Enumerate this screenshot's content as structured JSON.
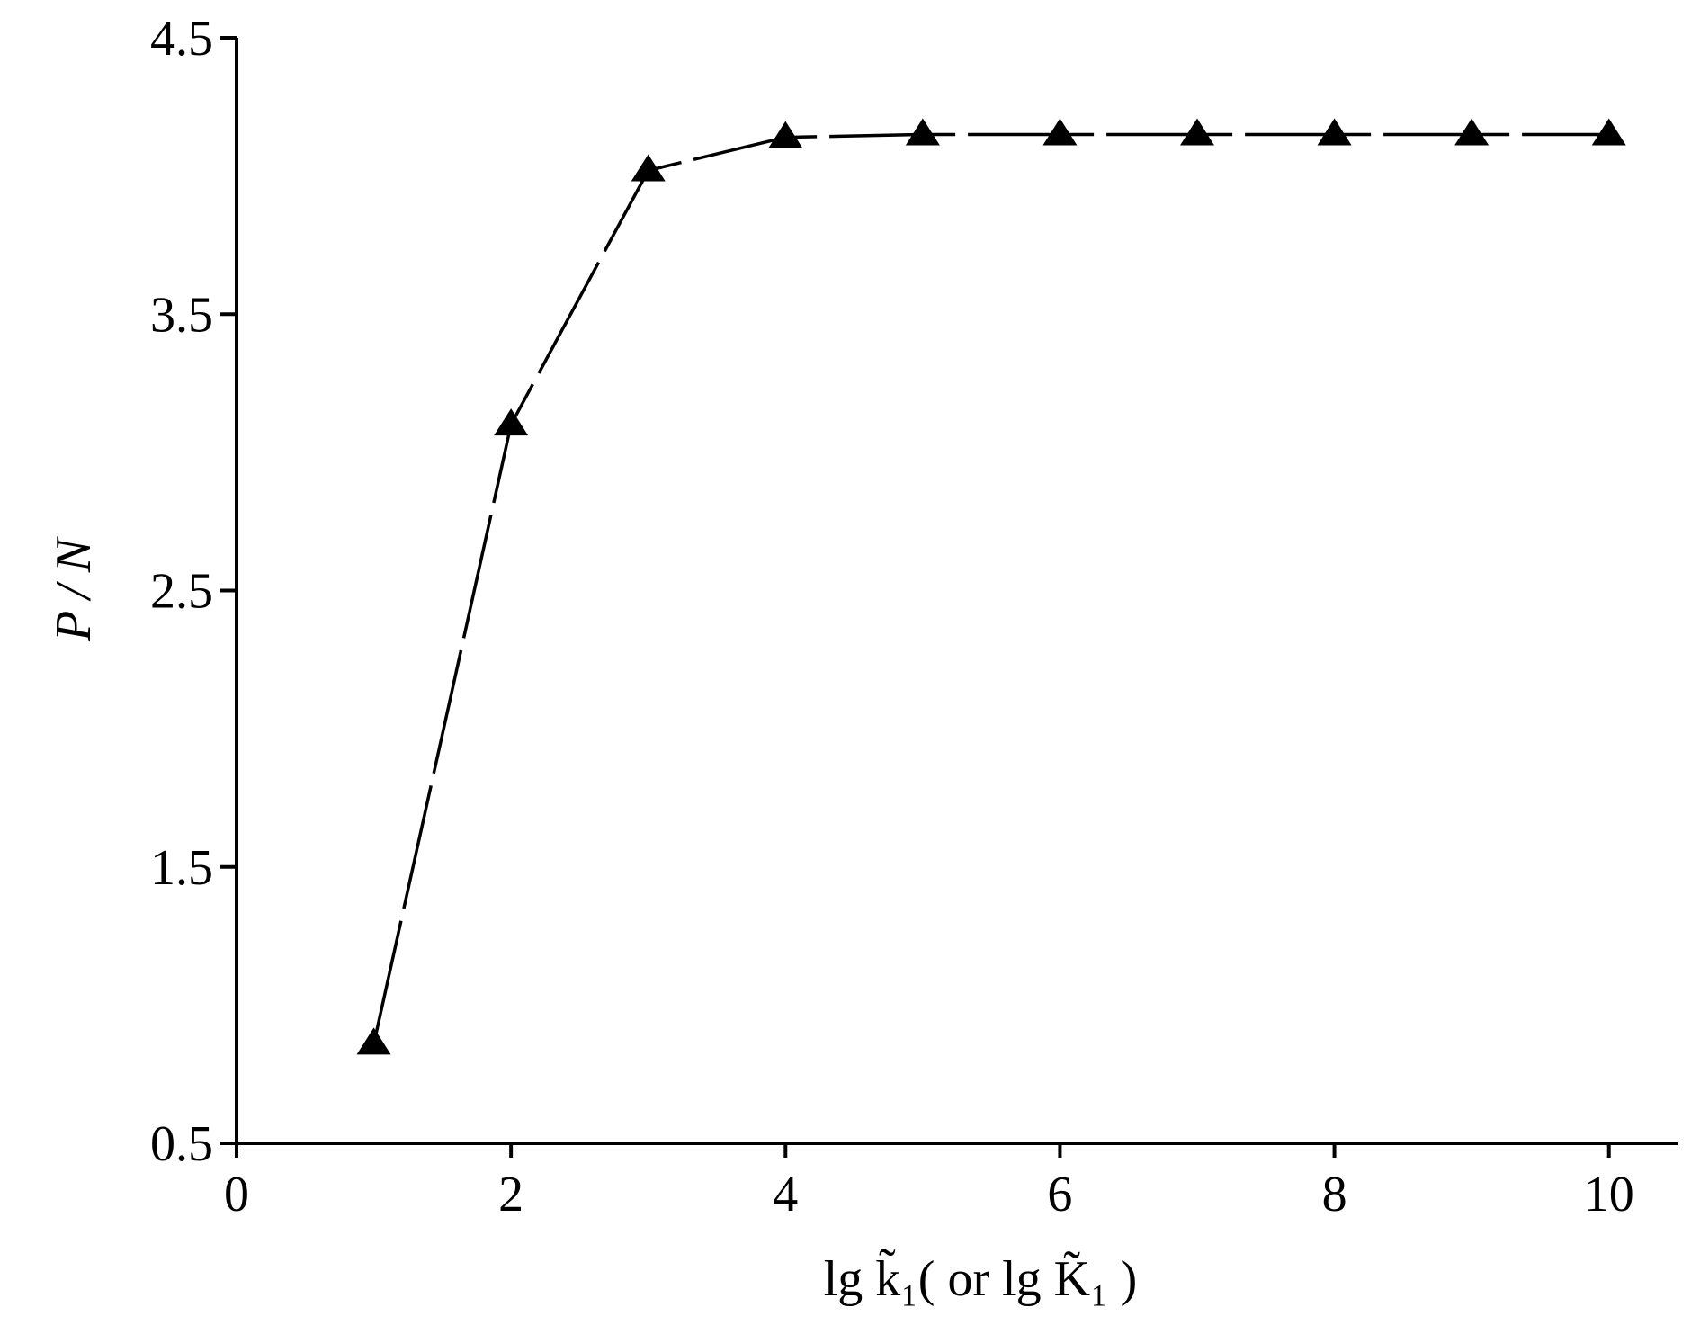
{
  "chart_data": {
    "type": "line",
    "xlabel": "lg k̃₁( or lg K̃₁ )",
    "ylabel": "P / N",
    "x": [
      1,
      2,
      3,
      4,
      5,
      6,
      7,
      8,
      9,
      10
    ],
    "series": [
      {
        "color": "#000000",
        "values": [
          0.86,
          3.1,
          4.02,
          4.14,
          4.15,
          4.15,
          4.15,
          4.15,
          4.15,
          4.15
        ]
      }
    ],
    "xlim": [
      0,
      10.5
    ],
    "xticks": [
      0,
      2,
      4,
      6,
      8,
      10
    ],
    "ylim": [
      0.5,
      4.5
    ],
    "yticks": [
      0.5,
      1.5,
      2.5,
      3.5,
      4.5
    ],
    "grid": false
  }
}
